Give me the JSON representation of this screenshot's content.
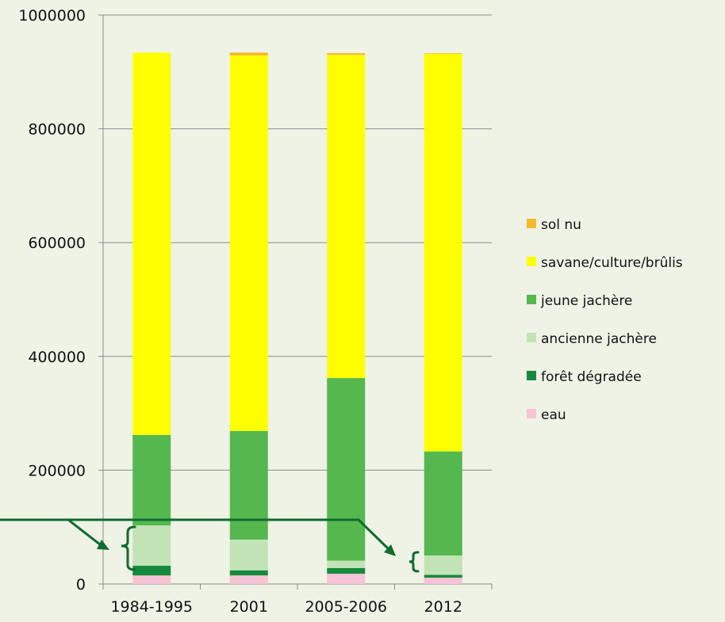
{
  "chart_data": {
    "type": "bar",
    "stacked": true,
    "categories": [
      "1984-1995",
      "2001",
      "2005-2006",
      "2012"
    ],
    "ylim": [
      0,
      1000000
    ],
    "yticks": [
      "0",
      "200000",
      "400000",
      "600000",
      "800000",
      "1000000"
    ],
    "grid": true,
    "legend_position": "right",
    "series": [
      {
        "name": "eau",
        "color": "#f7c3d6",
        "values": [
          15000,
          15000,
          18000,
          11000
        ]
      },
      {
        "name": "forêt dégradée",
        "color": "#168a3c",
        "values": [
          17000,
          9000,
          10000,
          5000
        ]
      },
      {
        "name": "ancienne jachère",
        "color": "#c2e3b6",
        "values": [
          71000,
          54000,
          13000,
          34000
        ]
      },
      {
        "name": "jeune jachère",
        "color": "#55b84f",
        "values": [
          159000,
          191000,
          321000,
          183000
        ]
      },
      {
        "name": "savane/culture/brûlis",
        "color": "#ffff00",
        "values": [
          672000,
          660000,
          568000,
          699000
        ]
      },
      {
        "name": "sol nu",
        "color": "#f5b82e",
        "values": [
          0,
          5000,
          3000,
          1000
        ]
      }
    ],
    "legend_order": [
      "sol nu",
      "savane/culture/brûlis",
      "jeune jachère",
      "ancienne jachère",
      "forêt dégradée",
      "eau"
    ],
    "annotation_color": "#0f6b2e"
  }
}
